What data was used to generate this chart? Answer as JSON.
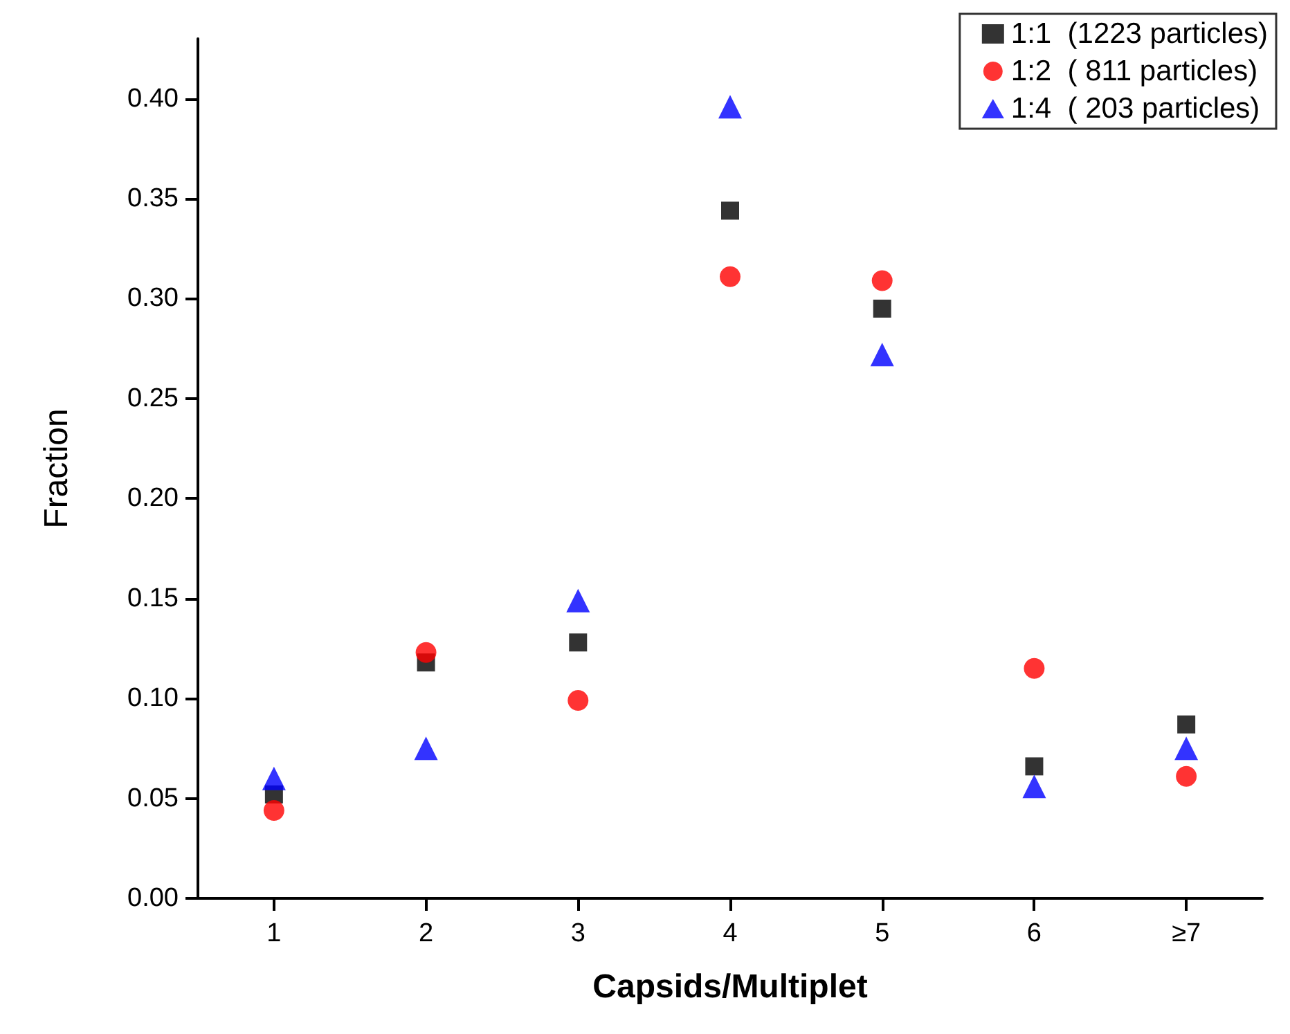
{
  "chart_data": {
    "type": "scatter",
    "xlabel": "Capsids/Multiplet",
    "ylabel": "Fraction",
    "categories": [
      "1",
      "2",
      "3",
      "4",
      "5",
      "6",
      "≥7"
    ],
    "series": [
      {
        "name": "1:1  (1223 particles)",
        "color": "#000000",
        "marker": "square",
        "values": [
          0.052,
          0.118,
          0.128,
          0.344,
          0.295,
          0.066,
          0.087
        ]
      },
      {
        "name": "1:2  ( 811 particles)",
        "color": "#ff0000",
        "marker": "circle",
        "values": [
          0.044,
          0.123,
          0.099,
          0.311,
          0.309,
          0.115,
          0.061
        ]
      },
      {
        "name": "1:4  ( 203 particles)",
        "color": "#0000ff",
        "marker": "triangle",
        "values": [
          0.06,
          0.075,
          0.149,
          0.396,
          0.272,
          0.056,
          0.075
        ]
      }
    ],
    "ylim": [
      0,
      0.43
    ],
    "yticks": [
      {
        "value": 0,
        "label": "0.00"
      },
      0.05,
      {
        "value": 0.1,
        "label": "0.10"
      },
      0.15,
      {
        "value": 0.2,
        "label": "0.20"
      },
      0.25,
      {
        "value": 0.3,
        "label": "0.30"
      },
      0.35,
      {
        "value": 0.4,
        "label": "0.40"
      }
    ],
    "grid": false,
    "legend": "top right"
  }
}
